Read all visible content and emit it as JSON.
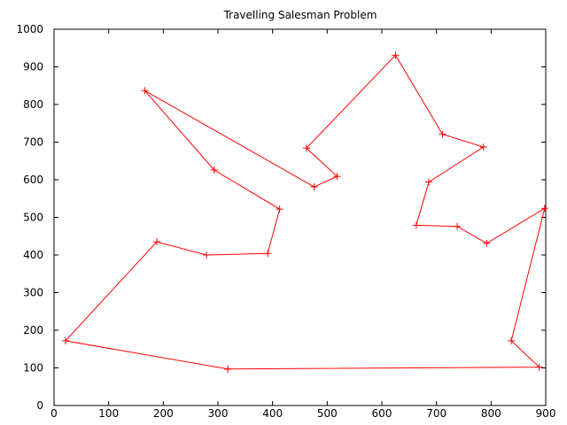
{
  "chart_data": {
    "type": "line",
    "title": "Travelling Salesman Problem",
    "xlabel": "",
    "ylabel": "",
    "xlim": [
      0,
      900
    ],
    "ylim": [
      0,
      1000
    ],
    "xticks": [
      0,
      100,
      200,
      300,
      400,
      500,
      600,
      700,
      800,
      900
    ],
    "yticks": [
      0,
      100,
      200,
      300,
      400,
      500,
      600,
      700,
      800,
      900,
      1000
    ],
    "grid": false,
    "line_color": "#ff0000",
    "marker": "plus",
    "series": [
      {
        "x": [
          318,
          888,
          837,
          898,
          792,
          738,
          663,
          686,
          786,
          711,
          625,
          462,
          518,
          476,
          166,
          293,
          413,
          391,
          279,
          188,
          21,
          318
        ],
        "y": [
          97,
          102,
          172,
          524,
          431,
          476,
          479,
          594,
          687,
          721,
          931,
          684,
          609,
          581,
          837,
          626,
          522,
          404,
          400,
          435,
          172,
          97
        ]
      }
    ]
  }
}
